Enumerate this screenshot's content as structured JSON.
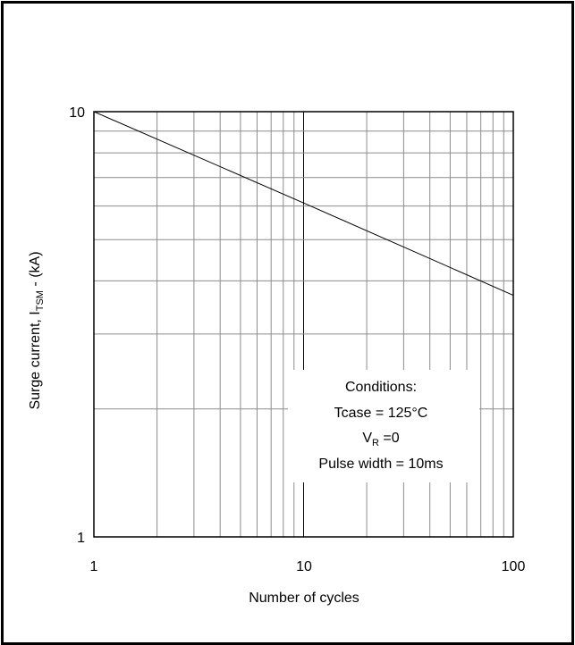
{
  "chart_data": {
    "type": "line",
    "scale": {
      "x": "log",
      "y": "log"
    },
    "xlim": [
      1,
      100
    ],
    "ylim": [
      1,
      10
    ],
    "grid": true,
    "x_ticks": [
      "1",
      "10",
      "100"
    ],
    "y_ticks": [
      "10",
      "1"
    ],
    "xlabel": "Number of cycles",
    "ylabel": {
      "prefix": "Surge current, I",
      "subscript": "TSM",
      "suffix": " - (kA)"
    },
    "series": [
      {
        "x": [
          1,
          10,
          100
        ],
        "y": [
          10.0,
          6.1,
          3.7
        ]
      }
    ],
    "annotation": {
      "title": "Conditions:",
      "tcase": "Tcase = 125°C",
      "vr_main": "V",
      "vr_sub": "R",
      "vr_value": " =0",
      "pulse": "Pulse width = 10ms"
    }
  }
}
